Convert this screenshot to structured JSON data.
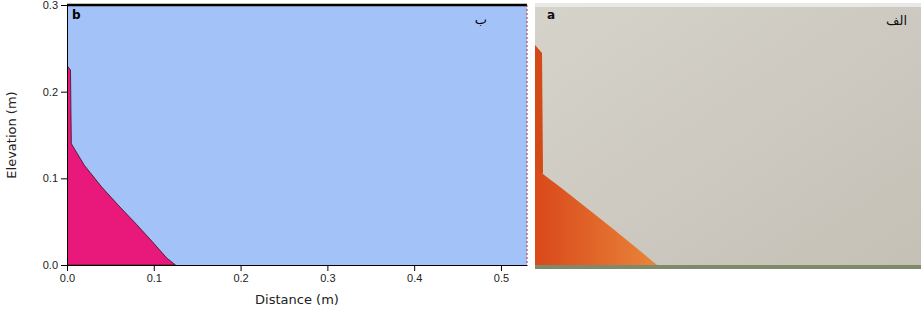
{
  "chart_data": {
    "type": "area",
    "x_label": "Distance (m)",
    "y_label": "Elevation (m)",
    "annotations": [
      "b",
      "ب"
    ],
    "x": [
      0,
      0.004,
      0.005,
      0.02,
      0.04,
      0.06,
      0.08,
      0.1,
      0.115,
      0.125
    ],
    "values": [
      0.23,
      0.225,
      0.14,
      0.115,
      0.09,
      0.068,
      0.047,
      0.025,
      0.008,
      0
    ],
    "color": "#e8197a",
    "xlim": [
      0,
      0.53
    ],
    "ylim": [
      0,
      0.3
    ],
    "xticks": [
      {
        "value": 0,
        "label": "0.0"
      },
      {
        "value": 0.1,
        "label": "0.1"
      },
      {
        "value": 0.2,
        "label": "0.2"
      },
      {
        "value": 0.3,
        "label": "0.3"
      },
      {
        "value": 0.4,
        "label": "0.4"
      },
      {
        "value": 0.5,
        "label": "0.5"
      }
    ],
    "yticks": [
      {
        "value": 0,
        "label": "0.0"
      },
      {
        "value": 0.1,
        "label": "0.1"
      },
      {
        "value": 0.2,
        "label": "0.2"
      },
      {
        "value": 0.3,
        "label": "0.3"
      }
    ]
  },
  "photo": {
    "labels": [
      "a",
      "الف"
    ]
  }
}
